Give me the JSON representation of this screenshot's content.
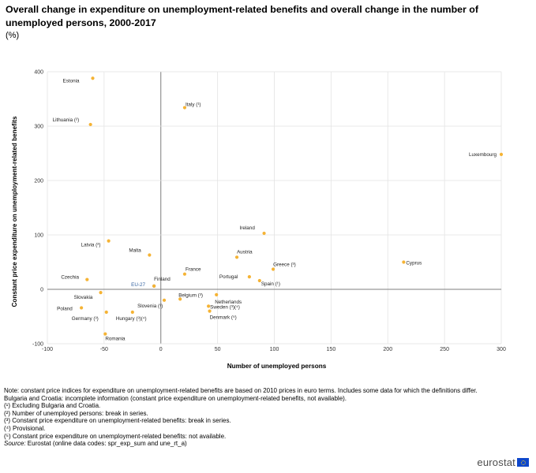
{
  "header": {
    "title": "Overall change in expenditure on unemployment-related benefits and overall change in the number of unemployed persons, 2000-2017",
    "unit": "(%)"
  },
  "chart_data": {
    "type": "scatter",
    "xlabel": "Number of unemployed persons",
    "ylabel": "Constant price expenditure on unemployment-related benefits",
    "xlim": [
      -100,
      300
    ],
    "ylim": [
      -100,
      400
    ],
    "xticks": [
      -100,
      -50,
      0,
      50,
      100,
      150,
      200,
      250,
      300
    ],
    "yticks": [
      -100,
      0,
      100,
      200,
      300,
      400
    ],
    "grid": true,
    "marker_color": "#f5b334",
    "points": [
      {
        "label": "Estonia",
        "x": -60,
        "y": 388
      },
      {
        "label": "Italy (¹)",
        "x": 21,
        "y": 334
      },
      {
        "label": "Lithuania (²)",
        "x": -62,
        "y": 303
      },
      {
        "label": "Luxembourg",
        "x": 300,
        "y": 248
      },
      {
        "label": "Ireland",
        "x": 91,
        "y": 103
      },
      {
        "label": "Latvia (²)",
        "x": -46,
        "y": 89
      },
      {
        "label": "Malta",
        "x": -10,
        "y": 63
      },
      {
        "label": "Austria",
        "x": 67,
        "y": 59
      },
      {
        "label": "Cyprus",
        "x": 214,
        "y": 50
      },
      {
        "label": "Greece (³)",
        "x": 99,
        "y": 37
      },
      {
        "label": "France",
        "x": 21,
        "y": 28
      },
      {
        "label": "Portugal",
        "x": 78,
        "y": 23
      },
      {
        "label": "Czechia",
        "x": -65,
        "y": 18
      },
      {
        "label": "Spain (¹)",
        "x": 87,
        "y": 16
      },
      {
        "label": "EU-27",
        "x": -6,
        "y": 6
      },
      {
        "label": "Finland",
        "x": -6,
        "y": 6
      },
      {
        "label": "Slovakia",
        "x": -53,
        "y": -6
      },
      {
        "label": "Netherlands",
        "x": 49,
        "y": -10
      },
      {
        "label": "Slovenia (³)",
        "x": 3,
        "y": -20
      },
      {
        "label": "Belgium (³)",
        "x": 17,
        "y": -18
      },
      {
        "label": "Sweden (³)(⁴)",
        "x": 42,
        "y": -31
      },
      {
        "label": "Poland",
        "x": -70,
        "y": -34
      },
      {
        "label": "Denmark (⁵)",
        "x": 43,
        "y": -40
      },
      {
        "label": "Germany (³)",
        "x": -48,
        "y": -42
      },
      {
        "label": "Hungary (³)(⁴)",
        "x": -25,
        "y": -42
      },
      {
        "label": "Romania",
        "x": -49,
        "y": -82
      }
    ]
  },
  "notes": [
    "Note: constant price indices for expenditure on unemployment-related benefits are based on 2010 prices in euro terms. Includes some data for which the definitions differ.",
    "Bulgaria and Croatia: incomplete information (constant price expenditure on unemployment-related benefits, not available).",
    "(¹) Excluding Bulgaria and Croatia.",
    "(²) Number of unemployed persons: break in series.",
    "(³) Constant price expenditure on unemployment-related benefits: break in series.",
    "(⁴) Provisional.",
    "(⁵) Constant price expenditure on unemployment-related benefits: not available."
  ],
  "source": {
    "label": "Source:",
    "text": " Eurostat (online data codes: spr_exp_sum and une_rt_a)"
  },
  "logo": {
    "text": "eurostat"
  }
}
